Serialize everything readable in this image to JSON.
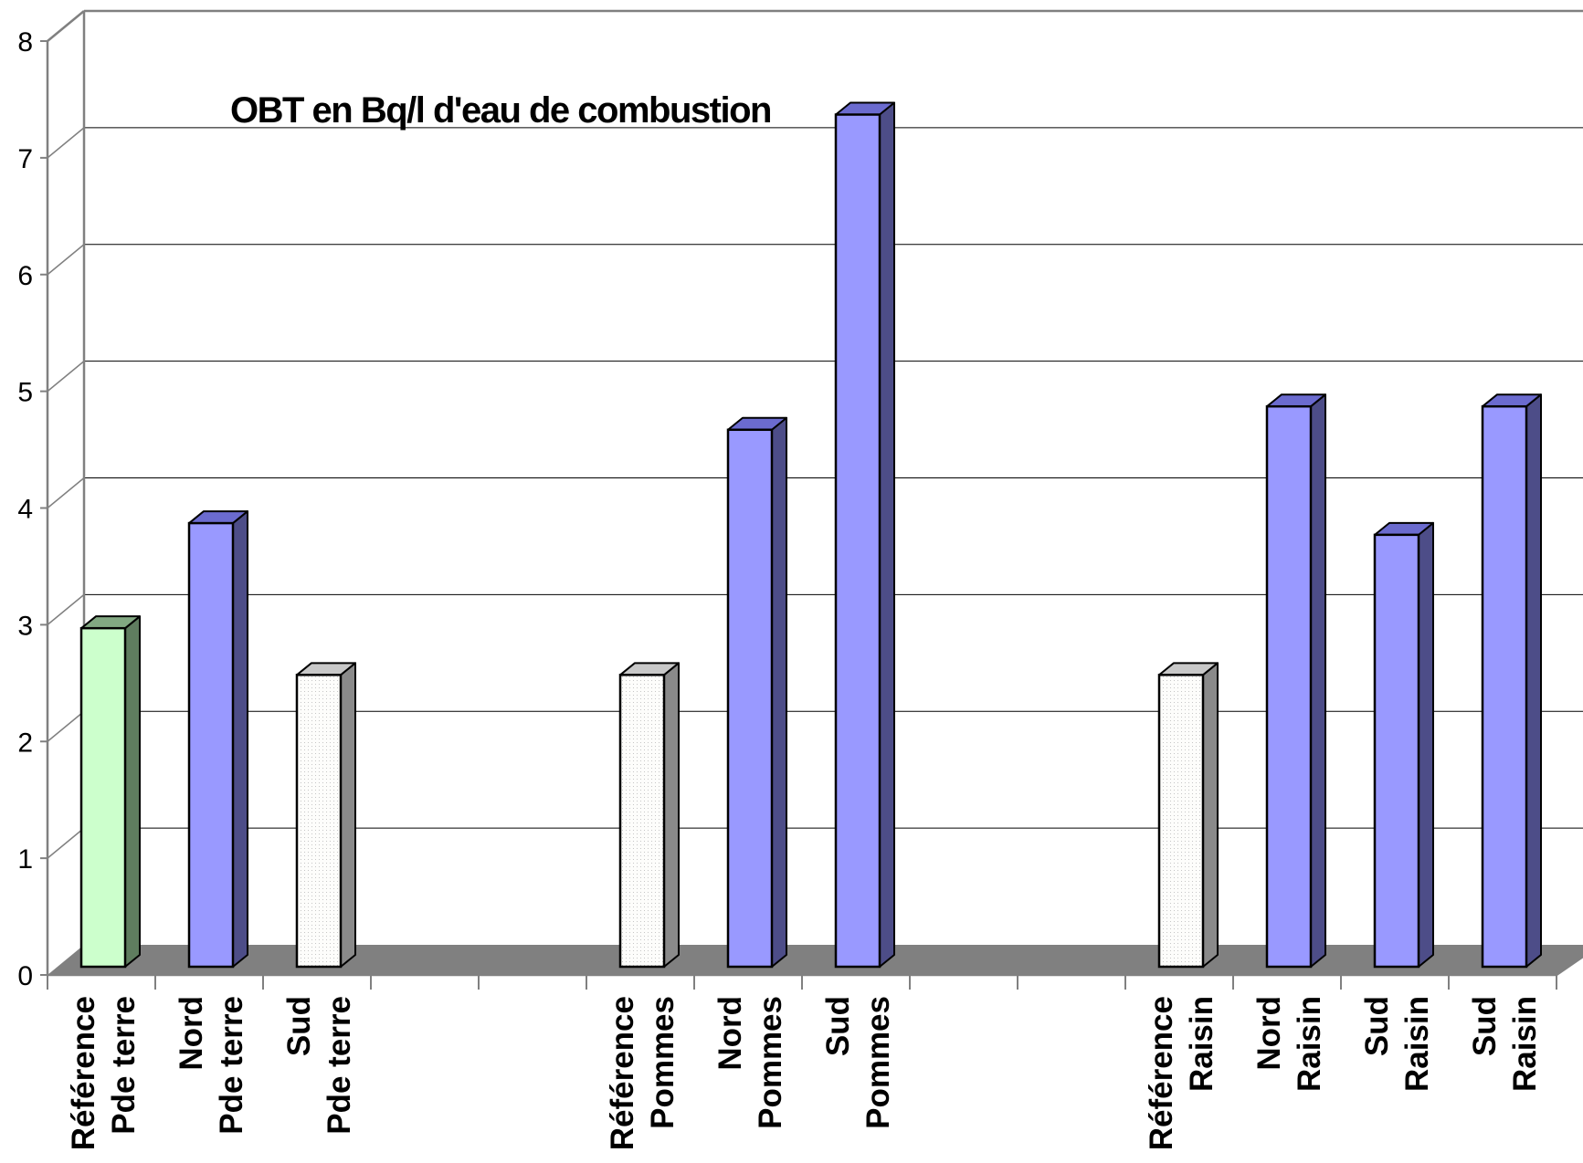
{
  "chart_data": {
    "type": "bar",
    "title": "OBT en Bq/l d'eau de combustion",
    "xlabel": "",
    "ylabel": "",
    "ylim": [
      0,
      8
    ],
    "yticks": [
      0,
      1,
      2,
      3,
      4,
      5,
      6,
      7,
      8
    ],
    "grid": true,
    "legend": "none",
    "three_d": true,
    "categories": [
      [
        "Référence",
        "Pde terre"
      ],
      [
        "Nord",
        "Pde terre"
      ],
      [
        "Sud",
        "Pde terre"
      ],
      [
        "",
        ""
      ],
      [
        "",
        ""
      ],
      [
        "Référence",
        "Pommes"
      ],
      [
        "Nord",
        "Pommes"
      ],
      [
        "Sud",
        "Pommes"
      ],
      [
        "",
        ""
      ],
      [
        "",
        ""
      ],
      [
        "Référence",
        "Raisin"
      ],
      [
        "Nord",
        "Raisin"
      ],
      [
        "Sud",
        "Raisin"
      ],
      [
        "Sud",
        "Raisin"
      ]
    ],
    "values": [
      2.9,
      3.8,
      2.5,
      null,
      null,
      2.5,
      4.6,
      7.3,
      null,
      null,
      2.5,
      4.8,
      3.7,
      4.8
    ],
    "bar_styles": [
      "green",
      "blue",
      "white",
      "",
      "",
      "white",
      "blue",
      "blue",
      "",
      "",
      "white",
      "blue",
      "blue",
      "blue"
    ],
    "colors": {
      "green": {
        "front": "#ccffcc",
        "top": "#82a882",
        "side": "#5f7d5f"
      },
      "blue": {
        "front": "#9999ff",
        "top": "#6b6bcf",
        "side": "#4d4d88"
      },
      "white": {
        "front": "#fcfcfa",
        "top": "#c8c8c8",
        "side": "#8a8a8a"
      },
      "floor": "#808080",
      "gridline": "#000000",
      "axis": "#808080"
    }
  }
}
